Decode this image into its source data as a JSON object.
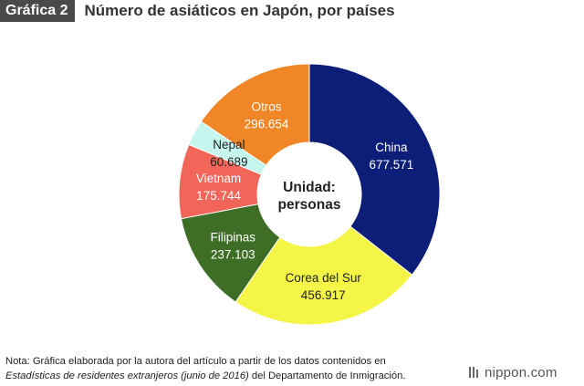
{
  "header": {
    "badge": "Gráfica 2",
    "title": "Número de asiáticos en Japón, por países"
  },
  "chart_data": {
    "type": "pie",
    "variant": "donut",
    "center_label": [
      "Unidad:",
      "personas"
    ],
    "slices": [
      {
        "label": "China",
        "value": 677571,
        "value_text": "677.571",
        "color": "#0c1e78",
        "text_color": "#ffffff"
      },
      {
        "label": "Corea del Sur",
        "value": 456917,
        "value_text": "456.917",
        "color": "#f4f547",
        "text_color": "#222222"
      },
      {
        "label": "Filipinas",
        "value": 237103,
        "value_text": "237.103",
        "color": "#3e6e25",
        "text_color": "#ffffff"
      },
      {
        "label": "Vietnam",
        "value": 175744,
        "value_text": "175.744",
        "color": "#f2665a",
        "text_color": "#ffffff"
      },
      {
        "label": "Nepal",
        "value": 60689,
        "value_text": "60.689",
        "color": "#c4f6ee",
        "text_color": "#222222"
      },
      {
        "label": "Otros",
        "value": 296654,
        "value_text": "296.654",
        "color": "#f08626",
        "text_color": "#ffffff"
      }
    ]
  },
  "note": {
    "line1": "Nota: Gráfica elaborada por la autora del artículo a partir de los datos contenidos en",
    "line2_italic": "Estadísticas de residentes extranjeros (junio de 2016)",
    "line2_rest": " del Departamento de Inmigración."
  },
  "brand": {
    "name": "nippon.com",
    "icon": "nippon-logo-icon"
  }
}
